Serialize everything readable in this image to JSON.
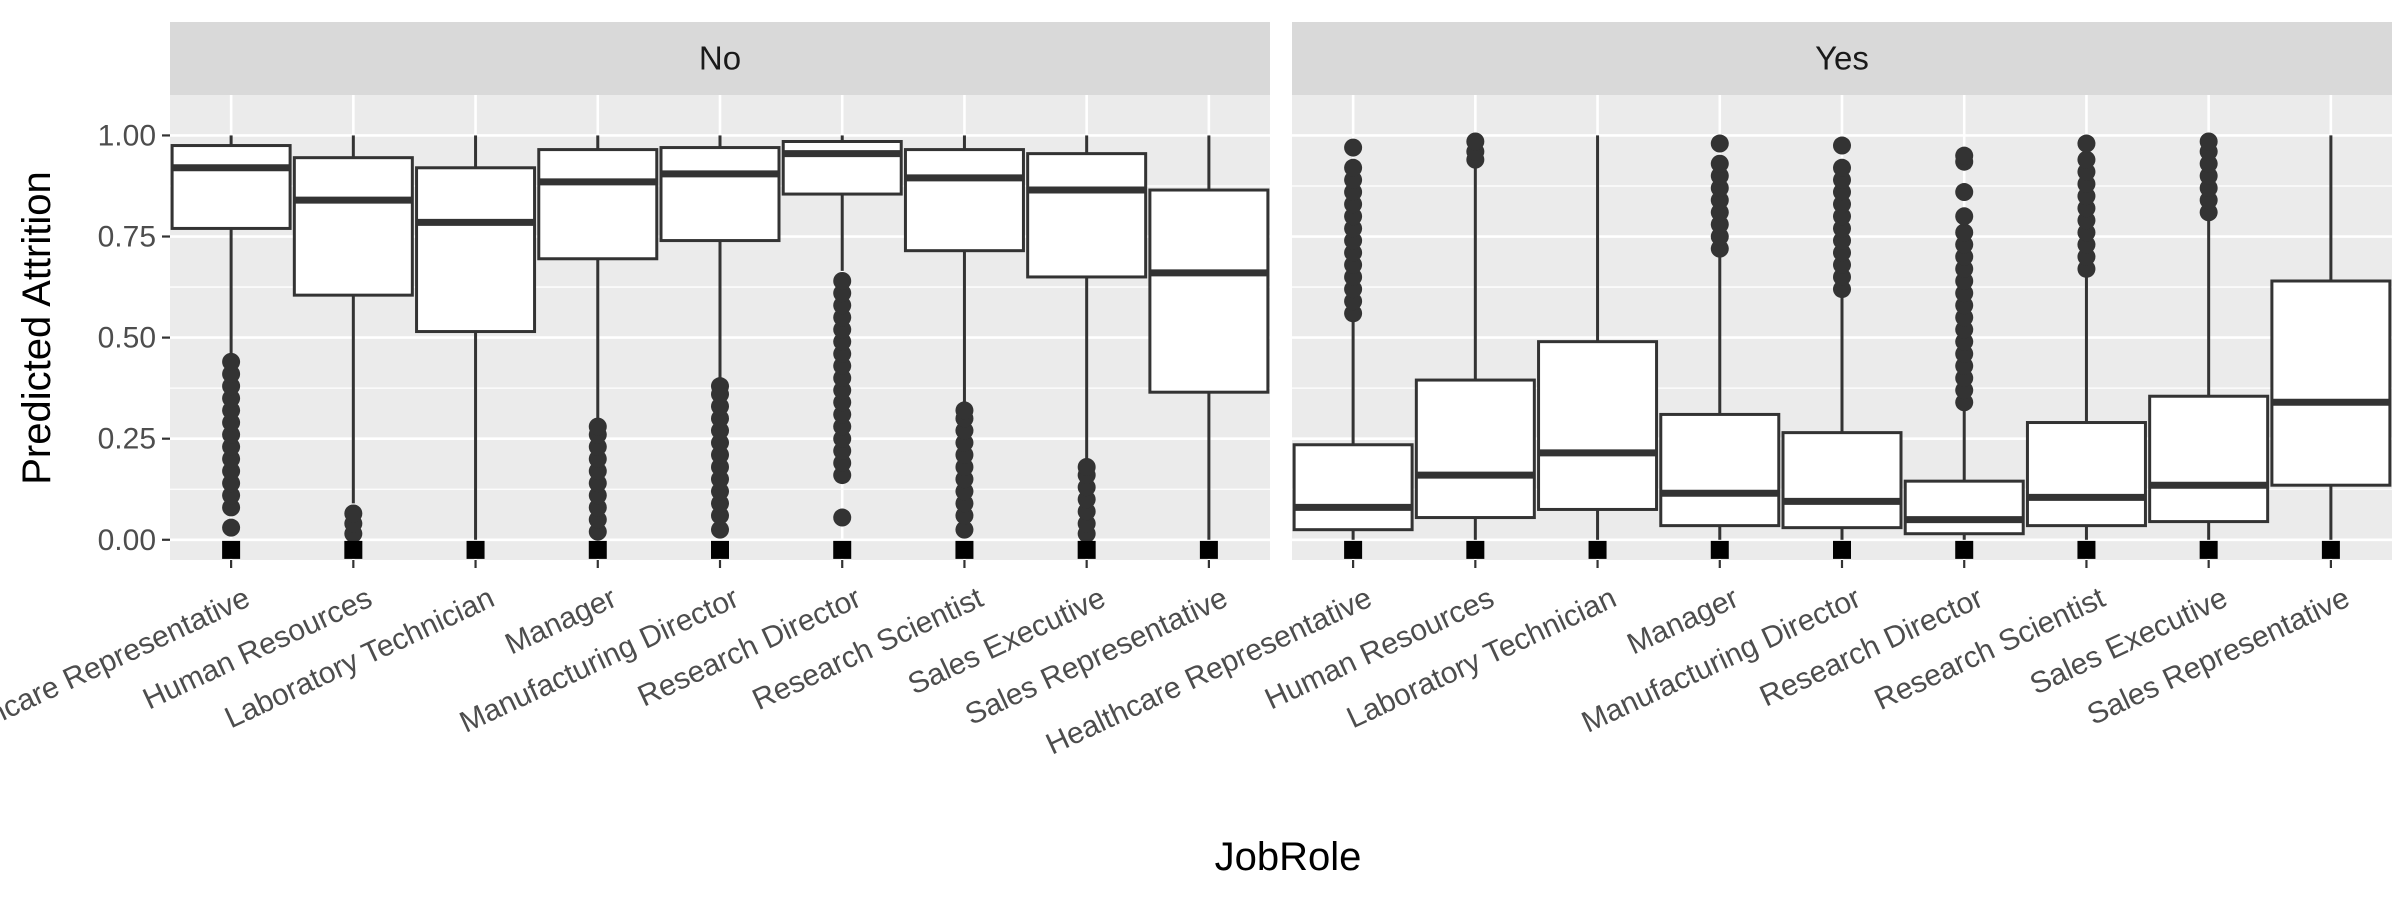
{
  "chart_data": {
    "type": "boxplot",
    "xlabel": "JobRole",
    "ylabel": "Predicted Attrition",
    "ylim": [
      -0.05,
      1.1
    ],
    "yticks": [
      "0.00",
      "0.25",
      "0.50",
      "0.75",
      "1.00"
    ],
    "categories": [
      "Healthcare Representative",
      "Human Resources",
      "Laboratory Technician",
      "Manager",
      "Manufacturing Director",
      "Research Director",
      "Research Scientist",
      "Sales Executive",
      "Sales Representative"
    ],
    "facets": [
      {
        "label": "No",
        "boxes": [
          {
            "category": "Healthcare Representative",
            "lower_whisker": 0.46,
            "q1": 0.77,
            "median": 0.92,
            "q3": 0.975,
            "upper_whisker": 1.0,
            "outliers": [
              0.03,
              0.08,
              0.11,
              0.14,
              0.17,
              0.2,
              0.23,
              0.26,
              0.29,
              0.32,
              0.35,
              0.38,
              0.41,
              0.44
            ]
          },
          {
            "category": "Human Resources",
            "lower_whisker": 0.09,
            "q1": 0.605,
            "median": 0.84,
            "q3": 0.945,
            "upper_whisker": 1.0,
            "outliers": [
              0.015,
              0.04,
              0.065
            ]
          },
          {
            "category": "Laboratory Technician",
            "lower_whisker": 0.0,
            "q1": 0.515,
            "median": 0.785,
            "q3": 0.92,
            "upper_whisker": 1.0,
            "outliers": []
          },
          {
            "category": "Manager",
            "lower_whisker": 0.29,
            "q1": 0.695,
            "median": 0.885,
            "q3": 0.965,
            "upper_whisker": 1.0,
            "outliers": [
              0.02,
              0.05,
              0.08,
              0.11,
              0.14,
              0.17,
              0.2,
              0.23,
              0.26,
              0.28
            ]
          },
          {
            "category": "Manufacturing Director",
            "lower_whisker": 0.39,
            "q1": 0.74,
            "median": 0.905,
            "q3": 0.97,
            "upper_whisker": 1.0,
            "outliers": [
              0.025,
              0.06,
              0.09,
              0.12,
              0.15,
              0.18,
              0.21,
              0.24,
              0.27,
              0.3,
              0.33,
              0.36,
              0.38
            ]
          },
          {
            "category": "Research Director",
            "lower_whisker": 0.665,
            "q1": 0.855,
            "median": 0.955,
            "q3": 0.985,
            "upper_whisker": 1.0,
            "outliers": [
              0.055,
              0.16,
              0.19,
              0.22,
              0.25,
              0.28,
              0.31,
              0.34,
              0.37,
              0.4,
              0.43,
              0.46,
              0.49,
              0.52,
              0.55,
              0.58,
              0.61,
              0.64
            ]
          },
          {
            "category": "Research Scientist",
            "lower_whisker": 0.34,
            "q1": 0.715,
            "median": 0.895,
            "q3": 0.965,
            "upper_whisker": 1.0,
            "outliers": [
              0.025,
              0.06,
              0.09,
              0.12,
              0.15,
              0.18,
              0.21,
              0.24,
              0.27,
              0.3,
              0.32
            ]
          },
          {
            "category": "Sales Executive",
            "lower_whisker": 0.19,
            "q1": 0.65,
            "median": 0.865,
            "q3": 0.955,
            "upper_whisker": 1.0,
            "outliers": [
              0.015,
              0.04,
              0.07,
              0.1,
              0.13,
              0.16,
              0.18
            ]
          },
          {
            "category": "Sales Representative",
            "lower_whisker": 0.0,
            "q1": 0.365,
            "median": 0.66,
            "q3": 0.865,
            "upper_whisker": 1.0,
            "outliers": []
          }
        ]
      },
      {
        "label": "Yes",
        "boxes": [
          {
            "category": "Healthcare Representative",
            "lower_whisker": 0.0,
            "q1": 0.025,
            "median": 0.08,
            "q3": 0.235,
            "upper_whisker": 0.545,
            "outliers": [
              0.56,
              0.59,
              0.62,
              0.65,
              0.68,
              0.71,
              0.74,
              0.77,
              0.8,
              0.83,
              0.86,
              0.89,
              0.92,
              0.97
            ]
          },
          {
            "category": "Human Resources",
            "lower_whisker": 0.0,
            "q1": 0.055,
            "median": 0.16,
            "q3": 0.395,
            "upper_whisker": 0.92,
            "outliers": [
              0.94,
              0.96,
              0.985
            ]
          },
          {
            "category": "Laboratory Technician",
            "lower_whisker": 0.0,
            "q1": 0.075,
            "median": 0.215,
            "q3": 0.49,
            "upper_whisker": 1.0,
            "outliers": []
          },
          {
            "category": "Manager",
            "lower_whisker": 0.0,
            "q1": 0.035,
            "median": 0.115,
            "q3": 0.31,
            "upper_whisker": 0.71,
            "outliers": [
              0.72,
              0.75,
              0.78,
              0.81,
              0.84,
              0.87,
              0.9,
              0.93,
              0.98
            ]
          },
          {
            "category": "Manufacturing Director",
            "lower_whisker": 0.0,
            "q1": 0.03,
            "median": 0.095,
            "q3": 0.265,
            "upper_whisker": 0.61,
            "outliers": [
              0.62,
              0.65,
              0.68,
              0.71,
              0.74,
              0.77,
              0.8,
              0.83,
              0.86,
              0.89,
              0.92,
              0.975
            ]
          },
          {
            "category": "Research Director",
            "lower_whisker": 0.0,
            "q1": 0.015,
            "median": 0.05,
            "q3": 0.145,
            "upper_whisker": 0.33,
            "outliers": [
              0.34,
              0.37,
              0.4,
              0.43,
              0.46,
              0.49,
              0.52,
              0.55,
              0.58,
              0.61,
              0.64,
              0.67,
              0.7,
              0.73,
              0.76,
              0.8,
              0.86,
              0.935,
              0.95
            ]
          },
          {
            "category": "Research Scientist",
            "lower_whisker": 0.0,
            "q1": 0.035,
            "median": 0.105,
            "q3": 0.29,
            "upper_whisker": 0.66,
            "outliers": [
              0.67,
              0.7,
              0.73,
              0.76,
              0.79,
              0.82,
              0.85,
              0.88,
              0.91,
              0.94,
              0.98
            ]
          },
          {
            "category": "Sales Executive",
            "lower_whisker": 0.0,
            "q1": 0.045,
            "median": 0.135,
            "q3": 0.355,
            "upper_whisker": 0.8,
            "outliers": [
              0.81,
              0.84,
              0.87,
              0.9,
              0.93,
              0.96,
              0.985
            ]
          },
          {
            "category": "Sales Representative",
            "lower_whisker": 0.0,
            "q1": 0.135,
            "median": 0.34,
            "q3": 0.64,
            "upper_whisker": 1.0,
            "outliers": []
          }
        ]
      }
    ],
    "marker_value": -0.025,
    "grid": true,
    "legend": "none"
  }
}
